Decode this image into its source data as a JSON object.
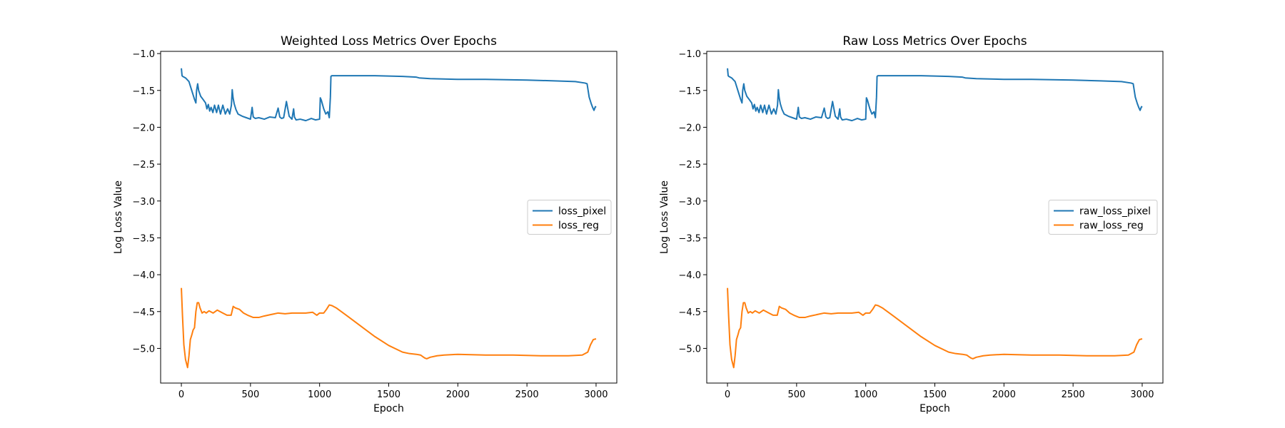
{
  "chart_data": [
    {
      "type": "line",
      "title": "Weighted Loss Metrics Over Epochs",
      "xlabel": "Epoch",
      "ylabel": "Log Loss Value",
      "xlim": [
        -150,
        3150
      ],
      "ylim": [
        -5.47,
        -0.97
      ],
      "xticks": [
        0,
        500,
        1000,
        1500,
        2000,
        2500,
        3000
      ],
      "yticks": [
        -1.0,
        -1.5,
        -2.0,
        -2.5,
        -3.0,
        -3.5,
        -4.0,
        -4.5,
        -5.0
      ],
      "grid": false,
      "legend_position": "center-right",
      "series": [
        {
          "name": "loss_pixel",
          "color": "#1f77b4",
          "x": [
            0,
            5,
            10,
            30,
            55,
            75,
            95,
            105,
            110,
            118,
            125,
            140,
            160,
            175,
            185,
            195,
            205,
            215,
            228,
            240,
            255,
            268,
            283,
            300,
            318,
            335,
            350,
            362,
            368,
            374,
            382,
            395,
            410,
            440,
            470,
            500,
            512,
            520,
            535,
            560,
            600,
            640,
            680,
            700,
            712,
            725,
            740,
            760,
            780,
            800,
            812,
            818,
            830,
            860,
            900,
            940,
            970,
            1000,
            1005,
            1012,
            1030,
            1045,
            1060,
            1070,
            1078,
            1082,
            1088,
            1200,
            1400,
            1600,
            1700,
            1720,
            1800,
            2000,
            2200,
            2500,
            2700,
            2850,
            2920,
            2935,
            2950,
            2965,
            2975,
            2985,
            2995,
            3000
          ],
          "y": [
            -1.2,
            -1.3,
            -1.31,
            -1.33,
            -1.38,
            -1.5,
            -1.62,
            -1.67,
            -1.5,
            -1.41,
            -1.5,
            -1.58,
            -1.63,
            -1.67,
            -1.75,
            -1.69,
            -1.78,
            -1.73,
            -1.8,
            -1.7,
            -1.8,
            -1.7,
            -1.82,
            -1.7,
            -1.82,
            -1.75,
            -1.82,
            -1.7,
            -1.49,
            -1.6,
            -1.68,
            -1.76,
            -1.82,
            -1.85,
            -1.87,
            -1.89,
            -1.73,
            -1.86,
            -1.88,
            -1.87,
            -1.89,
            -1.86,
            -1.87,
            -1.74,
            -1.86,
            -1.88,
            -1.87,
            -1.65,
            -1.85,
            -1.89,
            -1.75,
            -1.86,
            -1.9,
            -1.89,
            -1.91,
            -1.88,
            -1.9,
            -1.89,
            -1.6,
            -1.63,
            -1.75,
            -1.82,
            -1.79,
            -1.87,
            -1.59,
            -1.31,
            -1.3,
            -1.3,
            -1.3,
            -1.31,
            -1.32,
            -1.33,
            -1.34,
            -1.35,
            -1.35,
            -1.36,
            -1.37,
            -1.38,
            -1.4,
            -1.41,
            -1.59,
            -1.68,
            -1.73,
            -1.77,
            -1.72,
            -1.73
          ]
        },
        {
          "name": "loss_reg",
          "color": "#ff7f0e",
          "x": [
            0,
            8,
            18,
            30,
            45,
            55,
            65,
            75,
            85,
            95,
            105,
            115,
            125,
            135,
            150,
            165,
            180,
            200,
            230,
            260,
            300,
            330,
            360,
            375,
            390,
            420,
            450,
            480,
            520,
            560,
            600,
            650,
            700,
            750,
            800,
            850,
            900,
            950,
            980,
            1000,
            1030,
            1050,
            1070,
            1090,
            1120,
            1200,
            1300,
            1400,
            1500,
            1600,
            1650,
            1700,
            1730,
            1760,
            1775,
            1800,
            1850,
            1900,
            2000,
            2200,
            2400,
            2600,
            2800,
            2900,
            2940,
            2960,
            2980,
            3000
          ],
          "y": [
            -4.18,
            -4.55,
            -4.95,
            -5.15,
            -5.26,
            -5.1,
            -4.88,
            -4.82,
            -4.75,
            -4.72,
            -4.5,
            -4.38,
            -4.38,
            -4.45,
            -4.52,
            -4.5,
            -4.52,
            -4.49,
            -4.52,
            -4.48,
            -4.52,
            -4.55,
            -4.55,
            -4.43,
            -4.45,
            -4.47,
            -4.52,
            -4.55,
            -4.58,
            -4.58,
            -4.56,
            -4.54,
            -4.52,
            -4.53,
            -4.52,
            -4.52,
            -4.52,
            -4.51,
            -4.55,
            -4.52,
            -4.52,
            -4.47,
            -4.41,
            -4.42,
            -4.45,
            -4.56,
            -4.7,
            -4.84,
            -4.96,
            -5.05,
            -5.07,
            -5.08,
            -5.09,
            -5.13,
            -5.14,
            -5.12,
            -5.1,
            -5.09,
            -5.08,
            -5.09,
            -5.09,
            -5.1,
            -5.1,
            -5.09,
            -5.05,
            -4.95,
            -4.88,
            -4.87
          ]
        }
      ]
    },
    {
      "type": "line",
      "title": "Raw Loss Metrics Over Epochs",
      "xlabel": "Epoch",
      "ylabel": "Log Loss Value",
      "xlim": [
        -150,
        3150
      ],
      "ylim": [
        -5.47,
        -0.97
      ],
      "xticks": [
        0,
        500,
        1000,
        1500,
        2000,
        2500,
        3000
      ],
      "yticks": [
        -1.0,
        -1.5,
        -2.0,
        -2.5,
        -3.0,
        -3.5,
        -4.0,
        -4.5,
        -5.0
      ],
      "grid": false,
      "legend_position": "center-right",
      "series": [
        {
          "name": "raw_loss_pixel",
          "color": "#1f77b4",
          "x": [
            0,
            5,
            10,
            30,
            55,
            75,
            95,
            105,
            110,
            118,
            125,
            140,
            160,
            175,
            185,
            195,
            205,
            215,
            228,
            240,
            255,
            268,
            283,
            300,
            318,
            335,
            350,
            362,
            368,
            374,
            382,
            395,
            410,
            440,
            470,
            500,
            512,
            520,
            535,
            560,
            600,
            640,
            680,
            700,
            712,
            725,
            740,
            760,
            780,
            800,
            812,
            818,
            830,
            860,
            900,
            940,
            970,
            1000,
            1005,
            1012,
            1030,
            1045,
            1060,
            1070,
            1078,
            1082,
            1088,
            1200,
            1400,
            1600,
            1700,
            1720,
            1800,
            2000,
            2200,
            2500,
            2700,
            2850,
            2920,
            2935,
            2950,
            2965,
            2975,
            2985,
            2995,
            3000
          ],
          "y": [
            -1.2,
            -1.3,
            -1.31,
            -1.33,
            -1.38,
            -1.5,
            -1.62,
            -1.67,
            -1.5,
            -1.41,
            -1.5,
            -1.58,
            -1.63,
            -1.67,
            -1.75,
            -1.69,
            -1.78,
            -1.73,
            -1.8,
            -1.7,
            -1.8,
            -1.7,
            -1.82,
            -1.7,
            -1.82,
            -1.75,
            -1.82,
            -1.7,
            -1.49,
            -1.6,
            -1.68,
            -1.76,
            -1.82,
            -1.85,
            -1.87,
            -1.89,
            -1.73,
            -1.86,
            -1.88,
            -1.87,
            -1.89,
            -1.86,
            -1.87,
            -1.74,
            -1.86,
            -1.88,
            -1.87,
            -1.65,
            -1.85,
            -1.89,
            -1.75,
            -1.86,
            -1.9,
            -1.89,
            -1.91,
            -1.88,
            -1.9,
            -1.89,
            -1.6,
            -1.63,
            -1.75,
            -1.82,
            -1.79,
            -1.87,
            -1.59,
            -1.31,
            -1.3,
            -1.3,
            -1.3,
            -1.31,
            -1.32,
            -1.33,
            -1.34,
            -1.35,
            -1.35,
            -1.36,
            -1.37,
            -1.38,
            -1.4,
            -1.41,
            -1.59,
            -1.68,
            -1.73,
            -1.77,
            -1.72,
            -1.73
          ]
        },
        {
          "name": "raw_loss_reg",
          "color": "#ff7f0e",
          "x": [
            0,
            8,
            18,
            30,
            45,
            55,
            65,
            75,
            85,
            95,
            105,
            115,
            125,
            135,
            150,
            165,
            180,
            200,
            230,
            260,
            300,
            330,
            360,
            375,
            390,
            420,
            450,
            480,
            520,
            560,
            600,
            650,
            700,
            750,
            800,
            850,
            900,
            950,
            980,
            1000,
            1030,
            1050,
            1070,
            1090,
            1120,
            1200,
            1300,
            1400,
            1500,
            1600,
            1650,
            1700,
            1730,
            1760,
            1775,
            1800,
            1850,
            1900,
            2000,
            2200,
            2400,
            2600,
            2800,
            2900,
            2940,
            2960,
            2980,
            3000
          ],
          "y": [
            -4.18,
            -4.55,
            -4.95,
            -5.15,
            -5.26,
            -5.1,
            -4.88,
            -4.82,
            -4.75,
            -4.72,
            -4.5,
            -4.38,
            -4.38,
            -4.45,
            -4.52,
            -4.5,
            -4.52,
            -4.49,
            -4.52,
            -4.48,
            -4.52,
            -4.55,
            -4.55,
            -4.43,
            -4.45,
            -4.47,
            -4.52,
            -4.55,
            -4.58,
            -4.58,
            -4.56,
            -4.54,
            -4.52,
            -4.53,
            -4.52,
            -4.52,
            -4.52,
            -4.51,
            -4.55,
            -4.52,
            -4.52,
            -4.47,
            -4.41,
            -4.42,
            -4.45,
            -4.56,
            -4.7,
            -4.84,
            -4.96,
            -5.05,
            -5.07,
            -5.08,
            -5.09,
            -5.13,
            -5.14,
            -5.12,
            -5.1,
            -5.09,
            -5.08,
            -5.09,
            -5.09,
            -5.1,
            -5.1,
            -5.09,
            -5.05,
            -4.95,
            -4.88,
            -4.87
          ]
        }
      ]
    }
  ]
}
